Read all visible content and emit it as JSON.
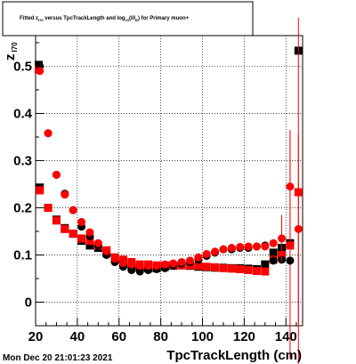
{
  "title": {
    "part1": "Fitted  z",
    "sub1": "I70",
    "part2": "  versus TpcTrackLength and log",
    "sub2": "10",
    "part3": "(I/I",
    "sub3": "B",
    "part4": ") for Primary muon+"
  },
  "timestamp": "Mon Dec 20 21:01:23 2021",
  "chart_data": {
    "type": "scatter",
    "xlabel": "TpcTrackLength (cm)",
    "ylabel": "z",
    "ylabel_sub": "I70",
    "xlim": [
      20,
      148
    ],
    "ylim": [
      -0.05,
      0.565
    ],
    "xticks": [
      20,
      40,
      60,
      80,
      100,
      120,
      140
    ],
    "yticks": [
      0,
      0.1,
      0.2,
      0.3,
      0.4,
      0.5
    ],
    "ytick_labels": [
      "0",
      "0.1",
      "0.2",
      "0.3",
      "0.4",
      "0.5"
    ],
    "grid": true,
    "series": [
      {
        "marker": "square",
        "color": "#000000",
        "x": [
          21.5,
          22,
          26,
          30,
          34,
          38,
          42,
          46,
          50,
          54,
          58,
          62,
          66,
          70,
          74,
          78,
          82,
          86,
          90,
          94,
          98,
          102,
          106,
          110,
          114,
          118,
          122,
          126,
          130,
          134,
          138,
          142,
          146
        ],
        "y": [
          0.503,
          0.243,
          0.2,
          0.175,
          0.157,
          0.145,
          0.13,
          0.12,
          0.115,
          0.104,
          0.092,
          0.082,
          0.075,
          0.072,
          0.072,
          0.072,
          0.075,
          0.077,
          0.078,
          0.077,
          0.075,
          0.074,
          0.073,
          0.073,
          0.072,
          0.072,
          0.071,
          0.07,
          0.08,
          0.105,
          0.115,
          0.125,
          0.533
        ]
      },
      {
        "marker": "square",
        "color": "#ff0000",
        "x": [
          21.5,
          22,
          26,
          30,
          34,
          38,
          42,
          46,
          50,
          54,
          58,
          62,
          66,
          70,
          74,
          78,
          82,
          86,
          90,
          94,
          98,
          102,
          106,
          110,
          114,
          118,
          122,
          126,
          130,
          134,
          138,
          142,
          146
        ],
        "y": [
          0.493,
          0.237,
          0.2,
          0.173,
          0.155,
          0.145,
          0.135,
          0.13,
          0.12,
          0.11,
          0.095,
          0.09,
          0.085,
          0.08,
          0.08,
          0.078,
          0.078,
          0.078,
          0.078,
          0.078,
          0.077,
          0.075,
          0.074,
          0.072,
          0.071,
          0.07,
          0.068,
          0.066,
          0.065,
          0.09,
          0.1,
          0.12,
          0.233
        ],
        "yerr": [
          0,
          0,
          0,
          0,
          0,
          0,
          0,
          0,
          0,
          0,
          0,
          0,
          0,
          0,
          0,
          0,
          0,
          0,
          0,
          0,
          0,
          0,
          0,
          0,
          0,
          0,
          0,
          0,
          0,
          0,
          0,
          0.24,
          0.37
        ]
      },
      {
        "marker": "circle",
        "color": "#000000",
        "x": [
          22,
          26,
          30,
          34,
          38,
          42,
          46,
          50,
          54,
          58,
          62,
          66,
          70,
          74,
          78,
          82,
          86,
          90,
          94,
          98,
          102,
          106,
          110,
          114,
          118,
          122,
          126,
          130,
          134,
          138,
          142
        ],
        "y": [
          0.5,
          0.358,
          0.27,
          0.23,
          0.195,
          0.16,
          0.14,
          0.12,
          0.1,
          0.085,
          0.075,
          0.068,
          0.065,
          0.068,
          0.07,
          0.072,
          0.078,
          0.082,
          0.085,
          0.09,
          0.098,
          0.105,
          0.112,
          0.112,
          0.115,
          0.115,
          0.118,
          0.12,
          0.088,
          0.09,
          0.088
        ]
      },
      {
        "marker": "circle",
        "color": "#ff0000",
        "x": [
          22,
          26,
          30,
          34,
          38,
          42,
          46,
          50,
          54,
          58,
          62,
          66,
          70,
          74,
          78,
          82,
          86,
          90,
          94,
          98,
          102,
          106,
          110,
          114,
          118,
          122,
          126,
          130,
          134,
          138,
          142,
          146
        ],
        "y": [
          0.49,
          0.358,
          0.27,
          0.228,
          0.195,
          0.17,
          0.148,
          0.125,
          0.108,
          0.092,
          0.083,
          0.08,
          0.077,
          0.077,
          0.077,
          0.08,
          0.082,
          0.085,
          0.088,
          0.095,
          0.102,
          0.107,
          0.112,
          0.115,
          0.117,
          0.118,
          0.118,
          0.118,
          0.125,
          0.135,
          0.245,
          0.155
        ],
        "yerr": [
          0,
          0,
          0,
          0,
          0,
          0,
          0,
          0,
          0,
          0,
          0,
          0,
          0,
          0,
          0,
          0,
          0,
          0,
          0,
          0,
          0,
          0,
          0,
          0,
          0,
          0,
          0,
          0,
          0,
          0.05,
          0.12,
          0.2
        ]
      }
    ]
  }
}
